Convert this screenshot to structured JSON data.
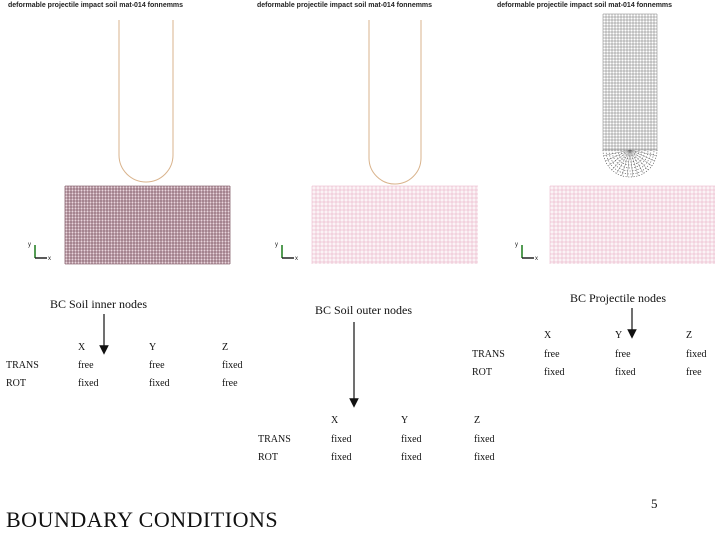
{
  "panels": [
    {
      "title": "deformable projectile impact soil mat-014 fonnemms"
    },
    {
      "title": "deformable projectile impact soil mat-014 fonnemms"
    },
    {
      "title": "deformable projectile impact soil mat-014 fonnemms"
    }
  ],
  "axis_labels": {
    "x": "x",
    "y": "y"
  },
  "soil_inner": {
    "label": "BC Soil inner nodes",
    "columns": [
      "X",
      "Y",
      "Z"
    ],
    "rows": [
      {
        "name": "TRANS",
        "values": [
          "free",
          "free",
          "fixed"
        ]
      },
      {
        "name": "ROT",
        "values": [
          "fixed",
          "fixed",
          "free"
        ]
      }
    ]
  },
  "soil_outer": {
    "label": "BC Soil outer nodes",
    "columns": [
      "X",
      "Y",
      "Z"
    ],
    "rows": [
      {
        "name": "TRANS",
        "values": [
          "fixed",
          "fixed",
          "fixed"
        ]
      },
      {
        "name": "ROT",
        "values": [
          "fixed",
          "fixed",
          "fixed"
        ]
      }
    ]
  },
  "projectile": {
    "label": "BC Projectile nodes",
    "columns": [
      "X",
      "Y",
      "Z"
    ],
    "rows": [
      {
        "name": "TRANS",
        "values": [
          "free",
          "free",
          "fixed"
        ]
      },
      {
        "name": "ROT",
        "values": [
          "fixed",
          "fixed",
          "free"
        ]
      }
    ]
  },
  "heading": "BOUNDARY CONDITIONS",
  "page_number": "5",
  "colors": {
    "mesh_dark": "#5a2a3a",
    "mesh_light": "#e6a8c0",
    "projectile_outline": "#d9b38c",
    "background": "#ffffff"
  }
}
